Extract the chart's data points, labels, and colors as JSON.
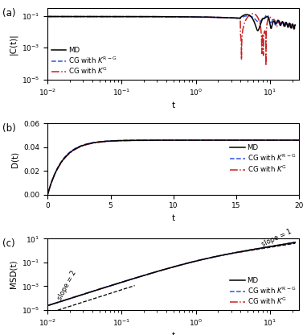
{
  "title_a": "(a)",
  "title_b": "(b)",
  "title_c": "(c)",
  "ylabel_a": "|C(t)|",
  "ylabel_b": "D(t)",
  "ylabel_c": "MSD(t)",
  "xlabel": "t",
  "legend_labels": [
    "MD",
    "CG with $K^{\\mathrm{R-G}}$",
    "CG with $K^{\\mathrm{G}}$"
  ],
  "colors": [
    "black",
    "#3355dd",
    "#cc2222"
  ],
  "panel_a": {
    "xlim": [
      0.01,
      25
    ],
    "ylim": [
      1e-05,
      0.3
    ],
    "yticks": [
      1e-05,
      0.001,
      0.1
    ]
  },
  "panel_b": {
    "xlim": [
      0,
      20
    ],
    "ylim": [
      0,
      0.06
    ],
    "yticks": [
      0,
      0.02,
      0.04,
      0.06
    ],
    "xticks": [
      0,
      5,
      10,
      15,
      20
    ]
  },
  "panel_c": {
    "xlim": [
      0.01,
      25
    ],
    "ylim": [
      1e-05,
      10
    ],
    "yticks": [
      1e-05,
      0.0001,
      0.001,
      0.01,
      0.1,
      1.0,
      10.0
    ]
  }
}
